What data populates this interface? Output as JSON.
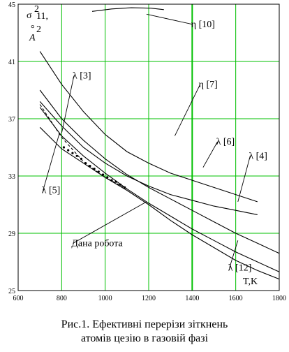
{
  "chart_data": {
    "type": "line",
    "title": "",
    "ylabel": "σ²₁₁, Å²",
    "ylabel_parts": {
      "sigma": "σ",
      "exp": "2",
      "sub": "11,",
      "unit": "A",
      "unit_ring": "°",
      "unit_exp": "2"
    },
    "xlabel": "T,K",
    "xlim": [
      600,
      1800
    ],
    "ylim": [
      25,
      45
    ],
    "x_ticks": [
      600,
      800,
      1000,
      1200,
      1400,
      1600,
      1800
    ],
    "y_ticks": [
      25,
      29,
      33,
      37,
      41,
      45
    ],
    "grid": true,
    "series": [
      {
        "name": "η [10]",
        "style": "solid",
        "x": [
          940,
          1030,
          1120,
          1210,
          1270
        ],
        "y": [
          44.5,
          44.67,
          44.75,
          44.72,
          44.62
        ]
      },
      {
        "name": "η [7]",
        "style": "solid",
        "x": [
          700,
          800,
          900,
          1000,
          1100,
          1200,
          1300,
          1400,
          1500,
          1600,
          1700
        ],
        "y": [
          41.7,
          39.4,
          37.5,
          35.9,
          34.7,
          33.9,
          33.2,
          32.7,
          32.2,
          31.7,
          31.2
        ]
      },
      {
        "name": "λ [6]",
        "style": "solid",
        "x": [
          700,
          800,
          900,
          1000,
          1100,
          1200,
          1300,
          1400,
          1500,
          1600,
          1700,
          1800
        ],
        "y": [
          39.0,
          37.0,
          35.5,
          34.2,
          33.1,
          32.2,
          31.4,
          30.6,
          29.8,
          29.0,
          28.3,
          27.6
        ]
      },
      {
        "name": "λ [4]",
        "style": "solid",
        "x": [
          700,
          800,
          900,
          1000,
          1100,
          1200,
          1300,
          1400,
          1500,
          1600,
          1700
        ],
        "y": [
          38.2,
          36.5,
          35.0,
          33.9,
          33.0,
          32.3,
          31.7,
          31.3,
          30.9,
          30.6,
          30.3
        ]
      },
      {
        "name": "λ [12]",
        "style": "solid",
        "x": [
          700,
          800,
          900,
          1000,
          1100,
          1200,
          1300,
          1400,
          1500,
          1600,
          1700,
          1800
        ],
        "y": [
          37.8,
          35.8,
          34.4,
          33.2,
          32.1,
          31.1,
          30.2,
          29.3,
          28.5,
          27.7,
          27.0,
          26.3
        ]
      },
      {
        "name": "λ [5]",
        "style": "dashed",
        "x": [
          700,
          800,
          900,
          1000,
          1100
        ],
        "y": [
          38.0,
          35.7,
          34.0,
          32.9,
          32.1
        ]
      },
      {
        "name": "Дана робота",
        "style": "solid",
        "x": [
          700,
          800,
          900,
          1000,
          1100,
          1200,
          1300,
          1400,
          1500,
          1600,
          1700,
          1800
        ],
        "y": [
          36.4,
          34.9,
          33.9,
          32.9,
          32.0,
          31.0,
          29.9,
          28.9,
          28.0,
          27.1,
          26.4,
          25.8
        ]
      },
      {
        "name": "Дана робота (точки)",
        "style": "points",
        "x": [
          810,
          830,
          850,
          870,
          890,
          910,
          930,
          950,
          970,
          990,
          1010,
          1030,
          1050,
          1070,
          1090
        ],
        "y": [
          35.0,
          34.8,
          34.6,
          34.4,
          34.2,
          33.9,
          33.7,
          33.5,
          33.3,
          33.1,
          32.9,
          32.7,
          32.6,
          32.4,
          32.2
        ]
      }
    ],
    "annotations": [
      {
        "text": "η [10]",
        "x": 1395,
        "y": 43.4,
        "line_to": [
          1190,
          44.3
        ]
      },
      {
        "text": "λ [3]",
        "x": 850,
        "y": 39.8,
        "line_to": [
          800,
          36.0
        ]
      },
      {
        "text": "η [7]",
        "x": 1430,
        "y": 39.2,
        "line_to": [
          1320,
          35.8
        ]
      },
      {
        "text": "λ [6]",
        "x": 1510,
        "y": 35.2,
        "line_to": [
          1450,
          33.6
        ]
      },
      {
        "text": "λ [4]",
        "x": 1660,
        "y": 34.2,
        "line_to": [
          1610,
          31.2
        ]
      },
      {
        "text": "λ [5]",
        "x": 708,
        "y": 31.8,
        "line_to": [
          790,
          36.0
        ]
      },
      {
        "text": "Дана робота",
        "x": 845,
        "y": 28.1,
        "line_to": [
          1190,
          31.2
        ]
      },
      {
        "text": "λ [12]",
        "x": 1565,
        "y": 26.4,
        "line_to": [
          1610,
          28.5
        ]
      }
    ]
  },
  "caption": {
    "line1": "Рис.1. Ефективні перерізи зіткнень",
    "line2": "атомів цезію в газовій фазі"
  }
}
